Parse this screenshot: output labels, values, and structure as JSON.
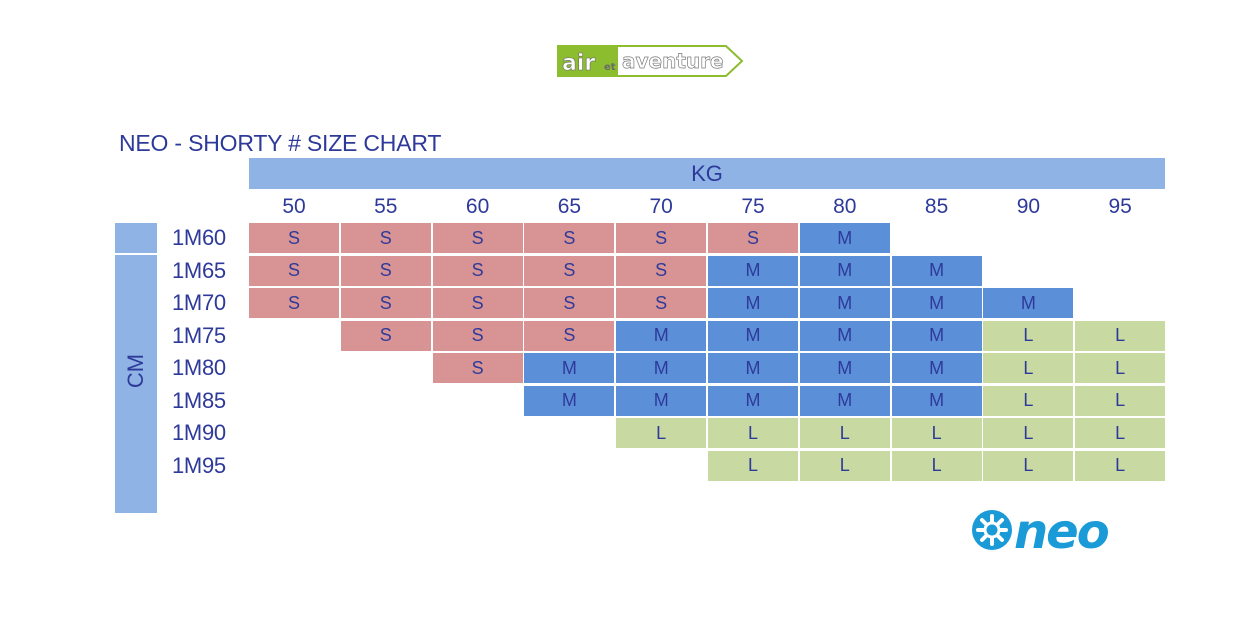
{
  "brand": {
    "top_logo_text": "air et aventure",
    "bottom_logo_text": "neo",
    "colors": {
      "small": "#d89494",
      "medium": "#5b8fd8",
      "large": "#c8d9a2",
      "axis_bar": "#8fb3e4",
      "text": "#2e3a9a",
      "neo_blue": "#1a9ad6",
      "top_logo_green": "#8bbd2e"
    }
  },
  "title": "NEO - SHORTY # SIZE CHART",
  "kg_label": "KG",
  "cm_label": "CM",
  "weights": [
    "50",
    "55",
    "60",
    "65",
    "70",
    "75",
    "80",
    "85",
    "90",
    "95"
  ],
  "rows": [
    {
      "height": "1M60",
      "sizes": [
        "S",
        "S",
        "S",
        "S",
        "S",
        "S",
        "M",
        "",
        "",
        ""
      ]
    },
    {
      "height": "1M65",
      "sizes": [
        "S",
        "S",
        "S",
        "S",
        "S",
        "M",
        "M",
        "M",
        "",
        ""
      ]
    },
    {
      "height": "1M70",
      "sizes": [
        "S",
        "S",
        "S",
        "S",
        "S",
        "M",
        "M",
        "M",
        "M",
        ""
      ]
    },
    {
      "height": "1M75",
      "sizes": [
        "",
        "S",
        "S",
        "S",
        "M",
        "M",
        "M",
        "M",
        "L",
        "L"
      ]
    },
    {
      "height": "1M80",
      "sizes": [
        "",
        "",
        "S",
        "M",
        "M",
        "M",
        "M",
        "M",
        "L",
        "L"
      ]
    },
    {
      "height": "1M85",
      "sizes": [
        "",
        "",
        "",
        "M",
        "M",
        "M",
        "M",
        "M",
        "L",
        "L"
      ]
    },
    {
      "height": "1M90",
      "sizes": [
        "",
        "",
        "",
        "",
        "L",
        "L",
        "L",
        "L",
        "L",
        "L"
      ]
    },
    {
      "height": "1M95",
      "sizes": [
        "",
        "",
        "",
        "",
        "",
        "L",
        "L",
        "L",
        "L",
        "L"
      ]
    }
  ]
}
